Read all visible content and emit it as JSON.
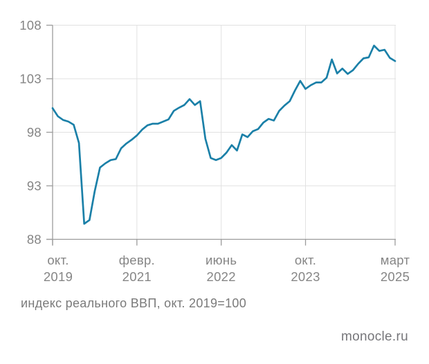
{
  "chart_data": {
    "type": "line",
    "title": "",
    "caption": "индекс реального ВВП, окт. 2019=100",
    "watermark": "monocle.ru",
    "ylim": [
      88,
      108
    ],
    "y_ticks": [
      88,
      93,
      98,
      103,
      108
    ],
    "x_ticks": [
      {
        "index": 0,
        "line1": "окт.",
        "line2": "2019"
      },
      {
        "index": 16,
        "line1": "февр.",
        "line2": "2021"
      },
      {
        "index": 32,
        "line1": "июнь",
        "line2": "2022"
      },
      {
        "index": 48,
        "line1": "окт.",
        "line2": "2023"
      },
      {
        "index": 65,
        "line1": "март",
        "line2": "2025"
      }
    ],
    "grid": true,
    "legend_position": "none",
    "series": [
      {
        "name": "индекс реального ВВП, окт. 2019=100",
        "frequency": "monthly",
        "start_month": "2019-10",
        "end_month": "2025-03",
        "color": "#1b80a8",
        "values": [
          100.25,
          99.5,
          99.15,
          99.0,
          98.7,
          97.0,
          89.45,
          89.8,
          92.5,
          94.7,
          95.1,
          95.4,
          95.5,
          96.5,
          96.95,
          97.3,
          97.7,
          98.25,
          98.65,
          98.8,
          98.8,
          99.0,
          99.2,
          100.0,
          100.3,
          100.55,
          101.1,
          100.55,
          100.9,
          97.4,
          95.6,
          95.4,
          95.6,
          96.1,
          96.8,
          96.3,
          97.8,
          97.55,
          98.1,
          98.3,
          98.9,
          99.25,
          99.1,
          100.0,
          100.5,
          100.9,
          101.9,
          102.8,
          102.05,
          102.4,
          102.65,
          102.65,
          103.1,
          104.8,
          103.5,
          103.95,
          103.45,
          103.8,
          104.4,
          104.9,
          105.0,
          106.1,
          105.6,
          105.7,
          104.95,
          104.65
        ]
      }
    ]
  },
  "colors": {
    "background": "#ffffff",
    "grid_line": "#e1e1e1",
    "axis_line": "#9b9b9b",
    "tick_label": "#858585",
    "caption_text": "#7a7a7a",
    "watermark_text": "#76767a",
    "series_line": "#1b80a8"
  }
}
